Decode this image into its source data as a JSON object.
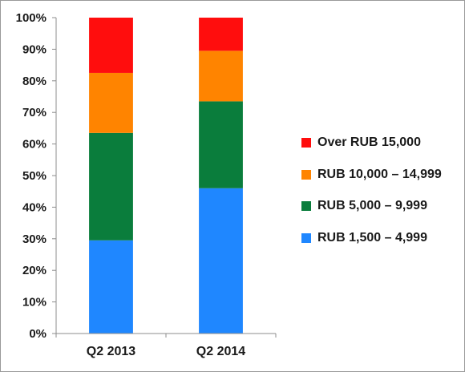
{
  "chart_data": {
    "type": "bar",
    "stacked": true,
    "categories": [
      "Q2 2013",
      "Q2 2014"
    ],
    "series": [
      {
        "name": "RUB 1,500 – 4,999",
        "color": "#1f87ff",
        "values": [
          29.5,
          46.0
        ]
      },
      {
        "name": "RUB 5,000 – 9,999",
        "color": "#0a7d3c",
        "values": [
          34.0,
          27.5
        ]
      },
      {
        "name": "RUB 10,000 – 14,999",
        "color": "#ff8400",
        "values": [
          19.0,
          16.0
        ]
      },
      {
        "name": "Over RUB 15,000",
        "color": "#ff0d0d",
        "values": [
          17.5,
          10.5
        ]
      }
    ],
    "ylim": [
      0,
      100
    ],
    "yticks": [
      "0%",
      "10%",
      "20%",
      "30%",
      "40%",
      "50%",
      "60%",
      "70%",
      "80%",
      "90%",
      "100%"
    ],
    "grid": false,
    "legend_position": "right",
    "legend_order": [
      "Over RUB 15,000",
      "RUB 10,000 – 14,999",
      "RUB 5,000 – 9,999",
      "RUB 1,500 – 4,999"
    ],
    "title": "",
    "xlabel": "",
    "ylabel": ""
  }
}
